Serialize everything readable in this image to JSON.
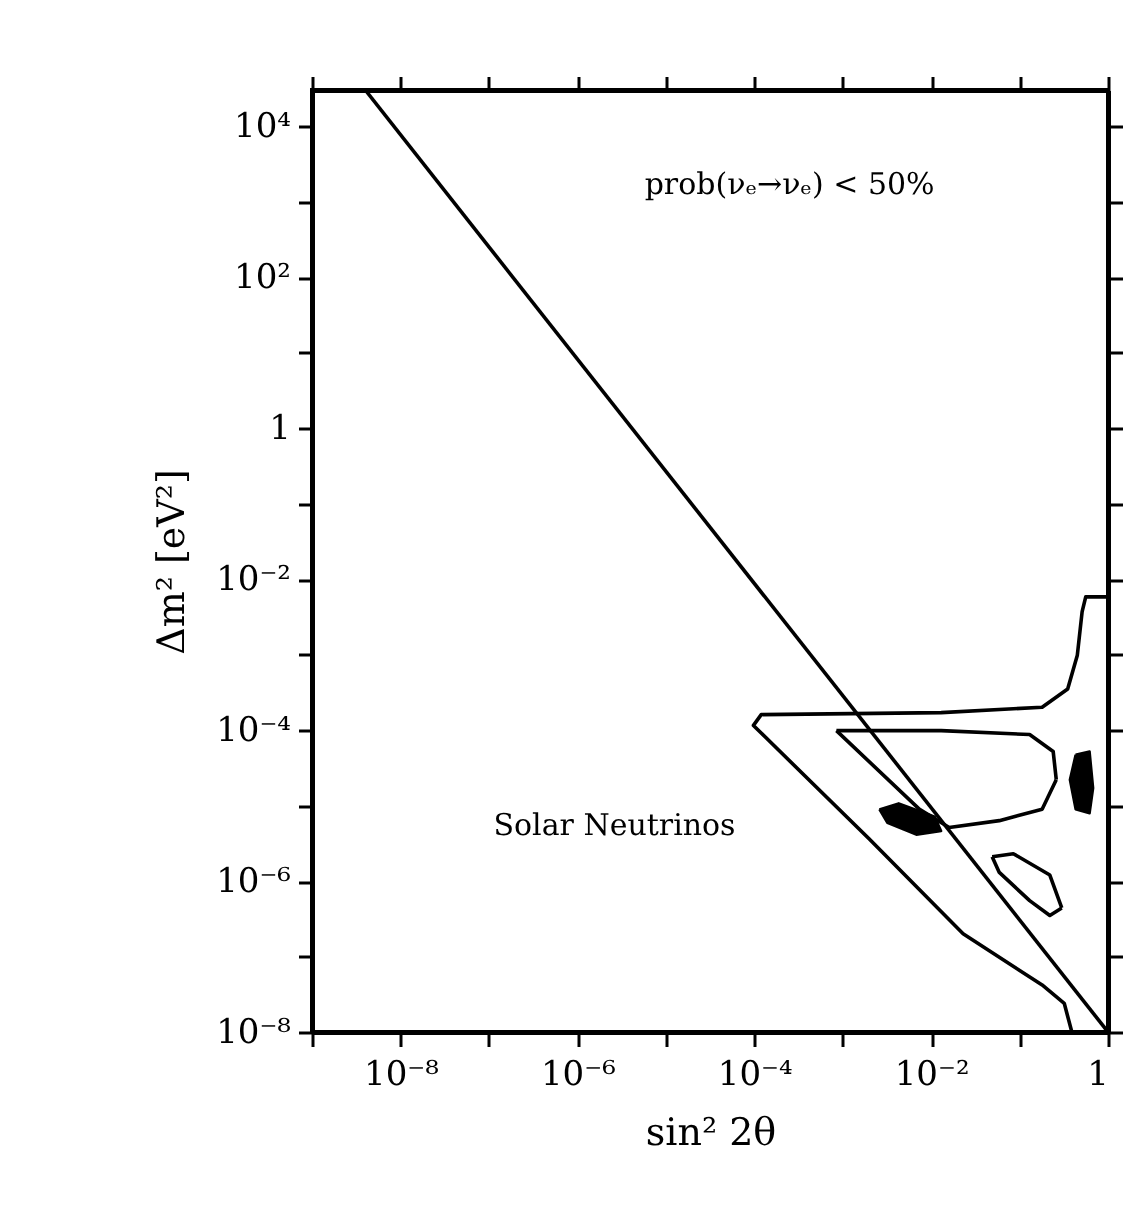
{
  "chart_data": {
    "type": "line",
    "xlabel": "sin² 2θ",
    "ylabel": "Δm² [eV²]",
    "annotations": [
      "prob(νₑ→νₑ) < 50%",
      "Solar Neutrinos"
    ],
    "log": "xy",
    "grid": false,
    "marker": "none",
    "line_style": "solid",
    "xlim": [
      1e-09,
      1
    ],
    "ylim": [
      1e-08,
      30000.0
    ],
    "xticks": [
      {
        "value": 1e-09,
        "label": null
      },
      {
        "value": 1e-08,
        "label": "10⁻⁸"
      },
      {
        "value": 1e-07,
        "label": null
      },
      {
        "value": 1e-06,
        "label": "10⁻⁶"
      },
      {
        "value": 1e-05,
        "label": null
      },
      {
        "value": 0.0001,
        "label": "10⁻⁴"
      },
      {
        "value": 0.001,
        "label": null
      },
      {
        "value": 0.01,
        "label": "10⁻²"
      },
      {
        "value": 0.1,
        "label": null
      },
      {
        "value": 1,
        "label": "1"
      }
    ],
    "yticks": [
      {
        "value": 1e-08,
        "label": "10⁻⁸"
      },
      {
        "value": 1e-07,
        "label": null
      },
      {
        "value": 1e-06,
        "label": "10⁻⁶"
      },
      {
        "value": 1e-05,
        "label": null
      },
      {
        "value": 0.0001,
        "label": "10⁻⁴"
      },
      {
        "value": 0.001,
        "label": null
      },
      {
        "value": 0.01,
        "label": "10⁻²"
      },
      {
        "value": 0.1,
        "label": null
      },
      {
        "value": 1,
        "label": "1"
      },
      {
        "value": 10,
        "label": null
      },
      {
        "value": 100,
        "label": "10²"
      },
      {
        "value": 1000,
        "label": null
      },
      {
        "value": 10000.0,
        "label": "10⁴"
      }
    ],
    "series": [
      {
        "color": "#000000",
        "x": [
          4e-09,
          1
        ],
        "values": [
          30000.0,
          1e-08
        ]
      },
      {
        "color": "#000000",
        "x": [
          0.39,
          0.32,
          0.18,
          0.023,
          0.002,
          9.8e-05,
          0.00012,
          0.013,
          0.18,
          0.35,
          0.45,
          0.51,
          0.56,
          1
        ],
        "values": [
          1e-08,
          2.4e-08,
          4.2e-08,
          2e-07,
          3.6e-06,
          0.000115,
          0.00016,
          0.00017,
          0.0002,
          0.00035,
          0.00098,
          0.0037,
          0.0058,
          0.0058
        ]
      },
      {
        "color": "#000000",
        "x": [
          0.00085,
          0.013,
          0.13,
          0.24,
          0.26
        ],
        "values": [
          9.8e-05,
          9.8e-05,
          8.7e-05,
          5.2e-05,
          2.2e-05
        ]
      },
      {
        "color": "#000000",
        "x": [
          0.00085,
          0.0074,
          0.016,
          0.059,
          0.18,
          0.26
        ],
        "values": [
          9.8e-05,
          8.9e-06,
          5.1e-06,
          6.3e-06,
          8.9e-06,
          2.2e-05
        ]
      },
      {
        "color": "#000000",
        "x": [
          0.049,
          0.085,
          0.22,
          0.3
        ],
        "values": [
          2.1e-06,
          2.3e-06,
          1.2e-06,
          4.4e-07
        ]
      },
      {
        "color": "#000000",
        "x": [
          0.049,
          0.059,
          0.13,
          0.22,
          0.3
        ],
        "values": [
          2.1e-06,
          1.3e-06,
          5.5e-07,
          3.5e-07,
          4.4e-07
        ]
      },
      {
        "type": "area",
        "color": "#000000",
        "x": [
          0.0026,
          0.0043,
          0.011,
          0.013,
          0.0068,
          0.0032,
          0.0026
        ],
        "values": [
          8.9e-06,
          1.07e-05,
          7.1e-06,
          4.6e-06,
          4.1e-06,
          5.9e-06,
          8.9e-06
        ]
      },
      {
        "type": "area",
        "color": "#000000",
        "x": [
          0.43,
          0.62,
          0.68,
          0.62,
          0.43,
          0.37,
          0.43
        ],
        "values": [
          4.7e-05,
          5.2e-05,
          1.7e-05,
          7.9e-06,
          8.9e-06,
          2.2e-05,
          4.7e-05
        ]
      }
    ]
  }
}
